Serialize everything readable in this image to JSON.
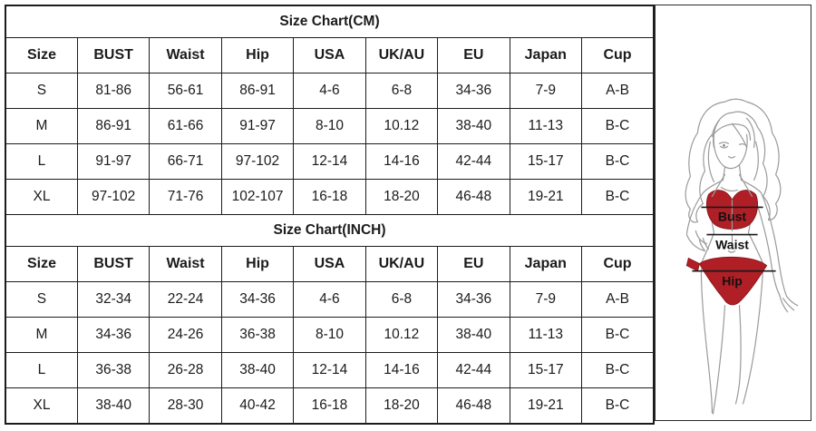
{
  "charts": [
    {
      "title": "Size Chart(CM)",
      "columns": [
        "Size",
        "BUST",
        "Waist",
        "Hip",
        "USA",
        "UK/AU",
        "EU",
        "Japan",
        "Cup"
      ],
      "rows": [
        [
          "S",
          "81-86",
          "56-61",
          "86-91",
          "4-6",
          "6-8",
          "34-36",
          "7-9",
          "A-B"
        ],
        [
          "M",
          "86-91",
          "61-66",
          "91-97",
          "8-10",
          "10.12",
          "38-40",
          "11-13",
          "B-C"
        ],
        [
          "L",
          "91-97",
          "66-71",
          "97-102",
          "12-14",
          "14-16",
          "42-44",
          "15-17",
          "B-C"
        ],
        [
          "XL",
          "97-102",
          "71-76",
          "102-107",
          "16-18",
          "18-20",
          "46-48",
          "19-21",
          "B-C"
        ]
      ]
    },
    {
      "title": "Size Chart(INCH)",
      "columns": [
        "Size",
        "BUST",
        "Waist",
        "Hip",
        "USA",
        "UK/AU",
        "EU",
        "Japan",
        "Cup"
      ],
      "rows": [
        [
          "S",
          "32-34",
          "22-24",
          "34-36",
          "4-6",
          "6-8",
          "34-36",
          "7-9",
          "A-B"
        ],
        [
          "M",
          "34-36",
          "24-26",
          "36-38",
          "8-10",
          "10.12",
          "38-40",
          "11-13",
          "B-C"
        ],
        [
          "L",
          "36-38",
          "26-28",
          "38-40",
          "12-14",
          "14-16",
          "42-44",
          "15-17",
          "B-C"
        ],
        [
          "XL",
          "38-40",
          "28-30",
          "40-42",
          "16-18",
          "18-20",
          "46-48",
          "19-21",
          "B-C"
        ]
      ]
    }
  ],
  "figure": {
    "labels": {
      "bust": "Bust",
      "waist": "Waist",
      "hip": "Hip"
    },
    "colors": {
      "bikini_red": "#b01f26",
      "line_art_gray": "#9a9a9a",
      "measure_line": "#1a1a1a",
      "border": "#1c1c1c"
    }
  }
}
